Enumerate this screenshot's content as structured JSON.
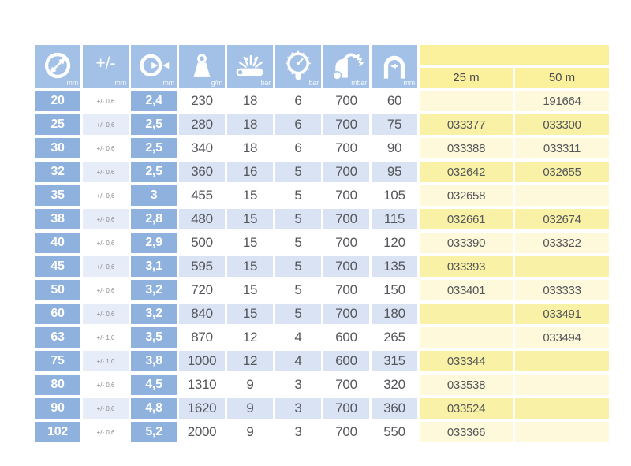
{
  "table": {
    "header": {
      "columns": [
        {
          "name": "inner-diameter",
          "unit": "mm"
        },
        {
          "name": "tolerance",
          "unit": "mm",
          "symbol": "+/-"
        },
        {
          "name": "wall-thickness",
          "unit": "mm"
        },
        {
          "name": "weight",
          "unit": "g/m"
        },
        {
          "name": "burst-pressure",
          "unit": "bar"
        },
        {
          "name": "working-pressure",
          "unit": "bar"
        },
        {
          "name": "vacuum",
          "unit": "mbar"
        },
        {
          "name": "bend-radius",
          "unit": "mm"
        }
      ],
      "length_columns": [
        "25 m",
        "50 m"
      ]
    },
    "rows": [
      [
        "20",
        "+/- 0,6",
        "2,4",
        "230",
        "18",
        "6",
        "700",
        "60",
        "",
        "191664"
      ],
      [
        "25",
        "+/- 0,6",
        "2,5",
        "280",
        "18",
        "6",
        "700",
        "75",
        "033377",
        "033300"
      ],
      [
        "30",
        "+/- 0,6",
        "2,5",
        "340",
        "18",
        "6",
        "700",
        "90",
        "033388",
        "033311"
      ],
      [
        "32",
        "+/- 0,6",
        "2,5",
        "360",
        "16",
        "5",
        "700",
        "95",
        "032642",
        "032655"
      ],
      [
        "35",
        "+/- 0,6",
        "3",
        "455",
        "15",
        "5",
        "700",
        "105",
        "032658",
        ""
      ],
      [
        "38",
        "+/- 0,6",
        "2,8",
        "480",
        "15",
        "5",
        "700",
        "115",
        "032661",
        "032674"
      ],
      [
        "40",
        "+/- 0,6",
        "2,9",
        "500",
        "15",
        "5",
        "700",
        "120",
        "033390",
        "033322"
      ],
      [
        "45",
        "+/- 0,6",
        "3,1",
        "595",
        "15",
        "5",
        "700",
        "135",
        "033393",
        ""
      ],
      [
        "50",
        "+/- 0,6",
        "3,2",
        "720",
        "15",
        "5",
        "700",
        "150",
        "033401",
        "033333"
      ],
      [
        "60",
        "+/- 0,6",
        "3,2",
        "840",
        "15",
        "5",
        "700",
        "180",
        "",
        "033491"
      ],
      [
        "63",
        "+/- 1,0",
        "3,5",
        "870",
        "12",
        "4",
        "600",
        "265",
        "",
        "033494"
      ],
      [
        "75",
        "+/- 1,0",
        "3,8",
        "1000",
        "12",
        "4",
        "600",
        "315",
        "033344",
        ""
      ],
      [
        "80",
        "+/- 0,6",
        "4,5",
        "1310",
        "9",
        "3",
        "700",
        "320",
        "033538",
        ""
      ],
      [
        "90",
        "+/- 0,6",
        "4,8",
        "1620",
        "9",
        "3",
        "700",
        "360",
        "033524",
        ""
      ],
      [
        "102",
        "+/- 0,6",
        "5,2",
        "2000",
        "9",
        "3",
        "700",
        "550",
        "033366",
        ""
      ]
    ],
    "colors": {
      "header_blue": "#a3c1e7",
      "key_blue": "#8fb1de",
      "row_light_blue": "#d9e3f4",
      "tolerance_light_blue": "#e7edf8",
      "yellow_header": "#fbf19c",
      "yellow_strong": "#f9f1a5",
      "yellow_light": "#fdf9da",
      "text_gray": "#55565a",
      "text_white": "#ffffff"
    }
  }
}
